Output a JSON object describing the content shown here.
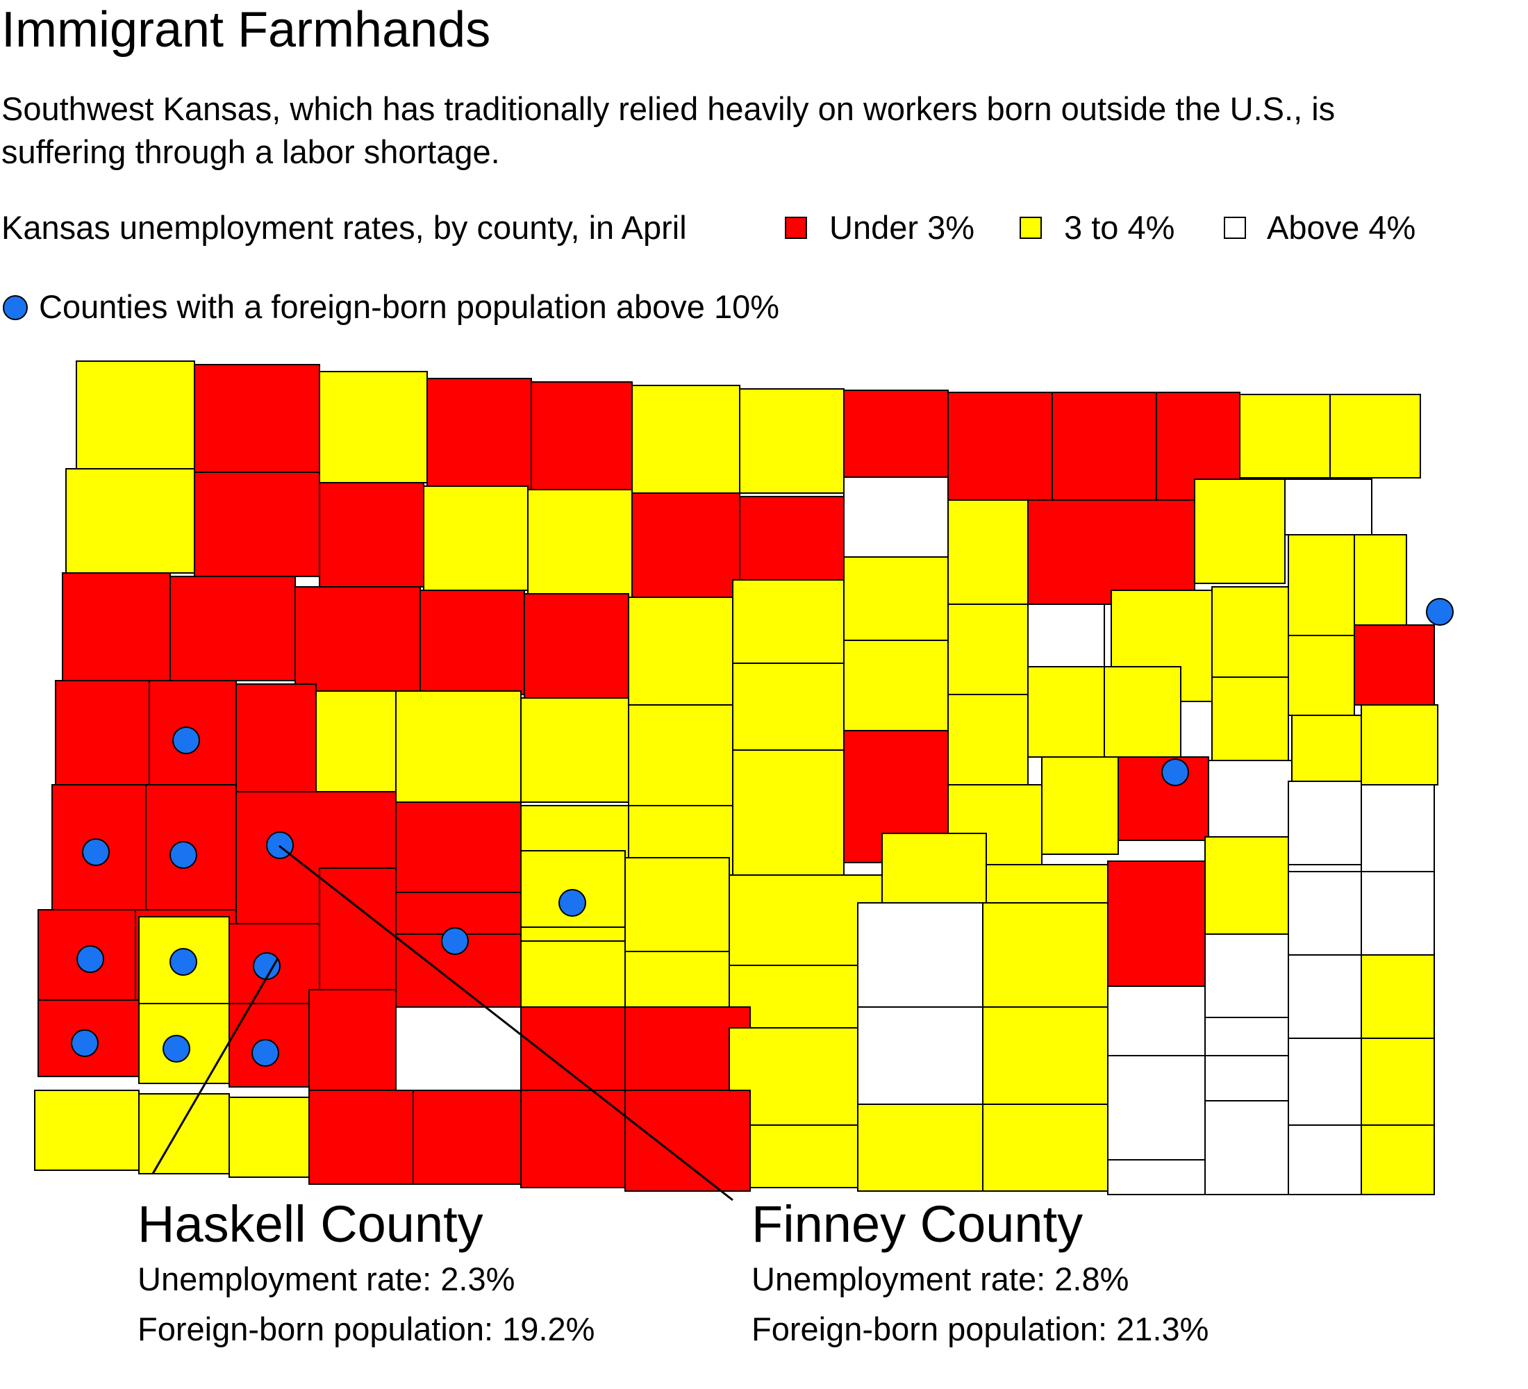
{
  "title": "Immigrant Farmhands",
  "subtitle": "Southwest Kansas, which has traditionally relied heavily on workers born outside the U.S., is suffering through a labor shortage.",
  "legend": {
    "caption": "Kansas unemployment rates, by county, in April",
    "items": [
      {
        "label": "Under 3%",
        "color": "#ff0000"
      },
      {
        "label": "3 to 4%",
        "color": "#ffff00"
      },
      {
        "label": "Above 4%",
        "color": "#ffffff"
      }
    ],
    "dot_label": "Counties with a foreign-born population above 10%",
    "dot_color": "#1a73f0"
  },
  "callouts": [
    {
      "county": "Haskell County",
      "unemployment": "Unemployment rate: 2.3%",
      "foreign_born": "Foreign-born population: 19.2%"
    },
    {
      "county": "Finney County",
      "unemployment": "Unemployment rate: 2.8%",
      "foreign_born": "Foreign-born population: 21.3%"
    }
  ]
}
